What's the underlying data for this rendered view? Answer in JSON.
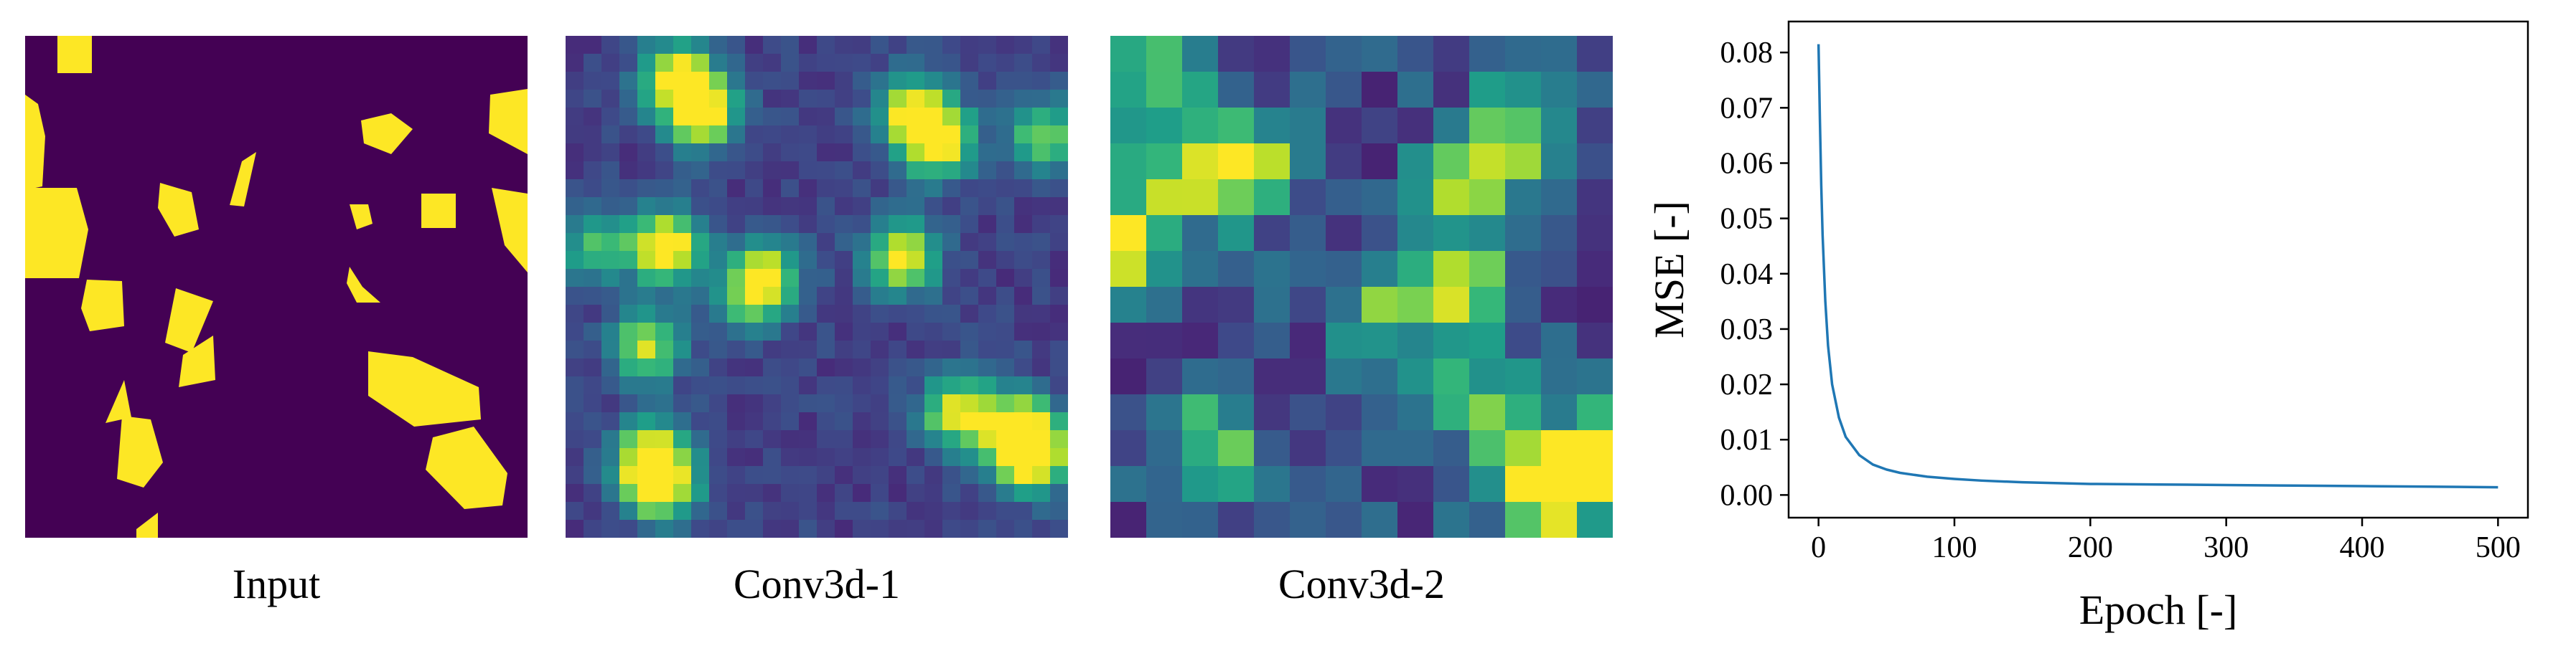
{
  "panels": [
    {
      "caption": "Input",
      "kind": "mask",
      "description_name": "input-panel"
    },
    {
      "caption": "Conv3d-1",
      "kind": "feature",
      "grid": 28,
      "description_name": "conv3d-1-panel"
    },
    {
      "caption": "Conv3d-2",
      "kind": "feature",
      "grid": 14,
      "description_name": "conv3d-2-panel"
    }
  ],
  "colors": {
    "mask_bg": "#440154",
    "mask_fg": "#fde725",
    "line": "#1f77b4"
  },
  "chart_data": {
    "type": "line",
    "title": "",
    "xlabel": "Epoch [-]",
    "ylabel": "MSE [-]",
    "xlim": [
      -22,
      522
    ],
    "ylim": [
      -0.0041,
      0.0856
    ],
    "xticks": [
      0,
      100,
      200,
      300,
      400,
      500
    ],
    "yticks": [
      0.0,
      0.01,
      0.02,
      0.03,
      0.04,
      0.05,
      0.06,
      0.07,
      0.08
    ],
    "ytick_labels": [
      "0.00",
      "0.01",
      "0.02",
      "0.03",
      "0.04",
      "0.05",
      "0.06",
      "0.07",
      "0.08"
    ],
    "grid": false,
    "series": [
      {
        "x": [
          0,
          1,
          2,
          3,
          5,
          7,
          10,
          15,
          20,
          30,
          40,
          50,
          60,
          80,
          100,
          120,
          150,
          200,
          250,
          300,
          350,
          400,
          450,
          500
        ],
        "values": [
          0.0815,
          0.068,
          0.056,
          0.047,
          0.035,
          0.027,
          0.02,
          0.014,
          0.0105,
          0.0072,
          0.0055,
          0.0046,
          0.004,
          0.0033,
          0.0029,
          0.0026,
          0.0023,
          0.002,
          0.0019,
          0.0018,
          0.0017,
          0.0016,
          0.0015,
          0.0014
        ]
      }
    ]
  }
}
